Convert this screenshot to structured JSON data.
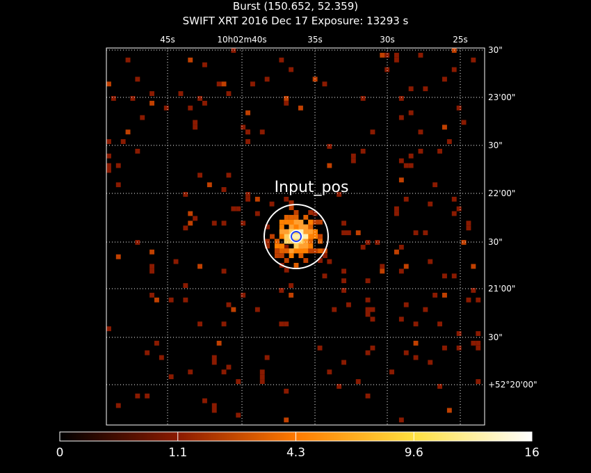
{
  "header": {
    "title": "Burst (150.652, 52.359)",
    "subtitle": "SWIFT XRT   2016 Dec 17    Exposure: 13293 s"
  },
  "image": {
    "ra_labels": [
      "45s",
      "10h02m40s",
      "35s",
      "30s",
      "25s"
    ],
    "dec_labels": [
      "30\"",
      "23'00\"",
      "30\"",
      "22'00\"",
      "30\"",
      "21'00\"",
      "30\"",
      "+52°20'00\""
    ],
    "annotation": "Input_pos"
  },
  "colorbar": {
    "ticks": [
      0,
      1.1,
      4.3,
      9.6,
      16
    ]
  }
}
